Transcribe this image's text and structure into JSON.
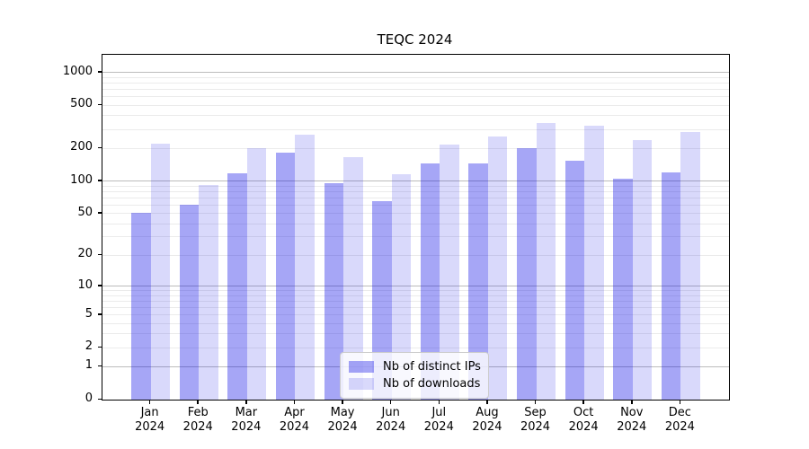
{
  "chart_data": {
    "type": "bar",
    "title": "TEQC 2024",
    "categories": [
      "Jan 2024",
      "Feb 2024",
      "Mar 2024",
      "Apr 2024",
      "May 2024",
      "Jun 2024",
      "Jul 2024",
      "Aug 2024",
      "Sep 2024",
      "Oct 2024",
      "Nov 2024",
      "Dec 2024"
    ],
    "series": [
      {
        "key": "distinct-ips",
        "name": "Nb of distinct IPs",
        "color": "rgba(0,0,230,0.35)",
        "values": [
          51,
          60,
          118,
          183,
          95,
          65,
          145,
          146,
          201,
          153,
          106,
          120
        ]
      },
      {
        "key": "downloads",
        "name": "Nb of downloads",
        "color": "rgba(0,0,230,0.15)",
        "values": [
          221,
          92,
          203,
          267,
          165,
          116,
          217,
          256,
          342,
          327,
          241,
          285
        ]
      }
    ],
    "y_ticks": [
      0,
      1,
      2,
      5,
      10,
      20,
      50,
      100,
      200,
      500,
      1000
    ],
    "minor_gridlines": [
      2,
      3,
      4,
      5,
      6,
      7,
      8,
      9,
      20,
      30,
      40,
      50,
      60,
      70,
      80,
      90,
      200,
      300,
      400,
      500,
      600,
      700,
      800,
      900
    ],
    "major_gridlines": [
      1,
      10,
      100,
      1000
    ],
    "scale": "log1p",
    "ylim": [
      0,
      1455
    ],
    "xlabel": "",
    "ylabel": "",
    "grid": "both",
    "legend_position": "bottom-center",
    "colors": {
      "major_grid": "#bcbcbc",
      "minor_grid": "#ebebeb",
      "axis": "#000000",
      "legend_border": "#cccccc"
    }
  }
}
